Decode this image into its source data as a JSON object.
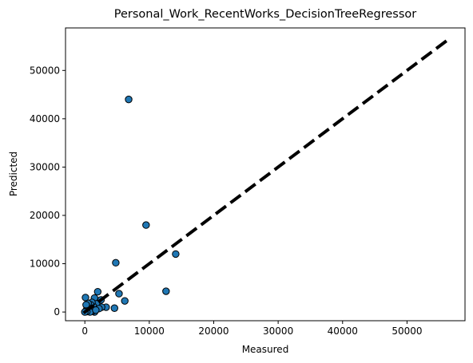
{
  "chart_data": {
    "type": "scatter",
    "title": "Personal_Work_RecentWorks_DecisionTreeRegressor",
    "xlabel": "Measured",
    "ylabel": "Predicted",
    "xlim": [
      -3000,
      59000
    ],
    "ylim": [
      -1800,
      58800
    ],
    "xticks": [
      0,
      10000,
      20000,
      30000,
      40000,
      50000
    ],
    "yticks": [
      0,
      10000,
      20000,
      30000,
      40000,
      50000
    ],
    "xtick_labels": [
      "0",
      "10000",
      "20000",
      "30000",
      "40000",
      "50000"
    ],
    "ytick_labels": [
      "0",
      "10000",
      "20000",
      "30000",
      "40000",
      "50000"
    ],
    "grid": false,
    "reference_line": {
      "from": [
        -200,
        -200
      ],
      "to": [
        56800,
        56800
      ],
      "style": "dashed",
      "color": "#000000"
    },
    "marker_color": "#1f77b4",
    "marker_edge": "#000000",
    "points": [
      {
        "x": 6800,
        "y": 44000
      },
      {
        "x": 9500,
        "y": 18000
      },
      {
        "x": 14100,
        "y": 12000
      },
      {
        "x": 4800,
        "y": 10200
      },
      {
        "x": 12600,
        "y": 4300
      },
      {
        "x": 5300,
        "y": 3800
      },
      {
        "x": 6200,
        "y": 2300
      },
      {
        "x": 4600,
        "y": 800
      },
      {
        "x": 3300,
        "y": 1000
      },
      {
        "x": 2600,
        "y": 1000
      },
      {
        "x": 2500,
        "y": 2500
      },
      {
        "x": 2000,
        "y": 4200
      },
      {
        "x": 1500,
        "y": 2900
      },
      {
        "x": 1800,
        "y": 1700
      },
      {
        "x": 1300,
        "y": 1200
      },
      {
        "x": 1100,
        "y": 2000
      },
      {
        "x": 900,
        "y": 1500
      },
      {
        "x": 700,
        "y": 900
      },
      {
        "x": 500,
        "y": 1800
      },
      {
        "x": 400,
        "y": 900
      },
      {
        "x": 300,
        "y": 600
      },
      {
        "x": 100,
        "y": 3000
      },
      {
        "x": 200,
        "y": 1500
      },
      {
        "x": 150,
        "y": 200
      },
      {
        "x": 50,
        "y": 50
      },
      {
        "x": 600,
        "y": 300
      },
      {
        "x": 1000,
        "y": 500
      },
      {
        "x": 1500,
        "y": 0
      },
      {
        "x": 1200,
        "y": 200
      },
      {
        "x": 800,
        "y": 0
      },
      {
        "x": 2200,
        "y": 700
      },
      {
        "x": 1700,
        "y": 400
      },
      {
        "x": 300,
        "y": 100
      },
      {
        "x": 0,
        "y": 0
      }
    ]
  }
}
